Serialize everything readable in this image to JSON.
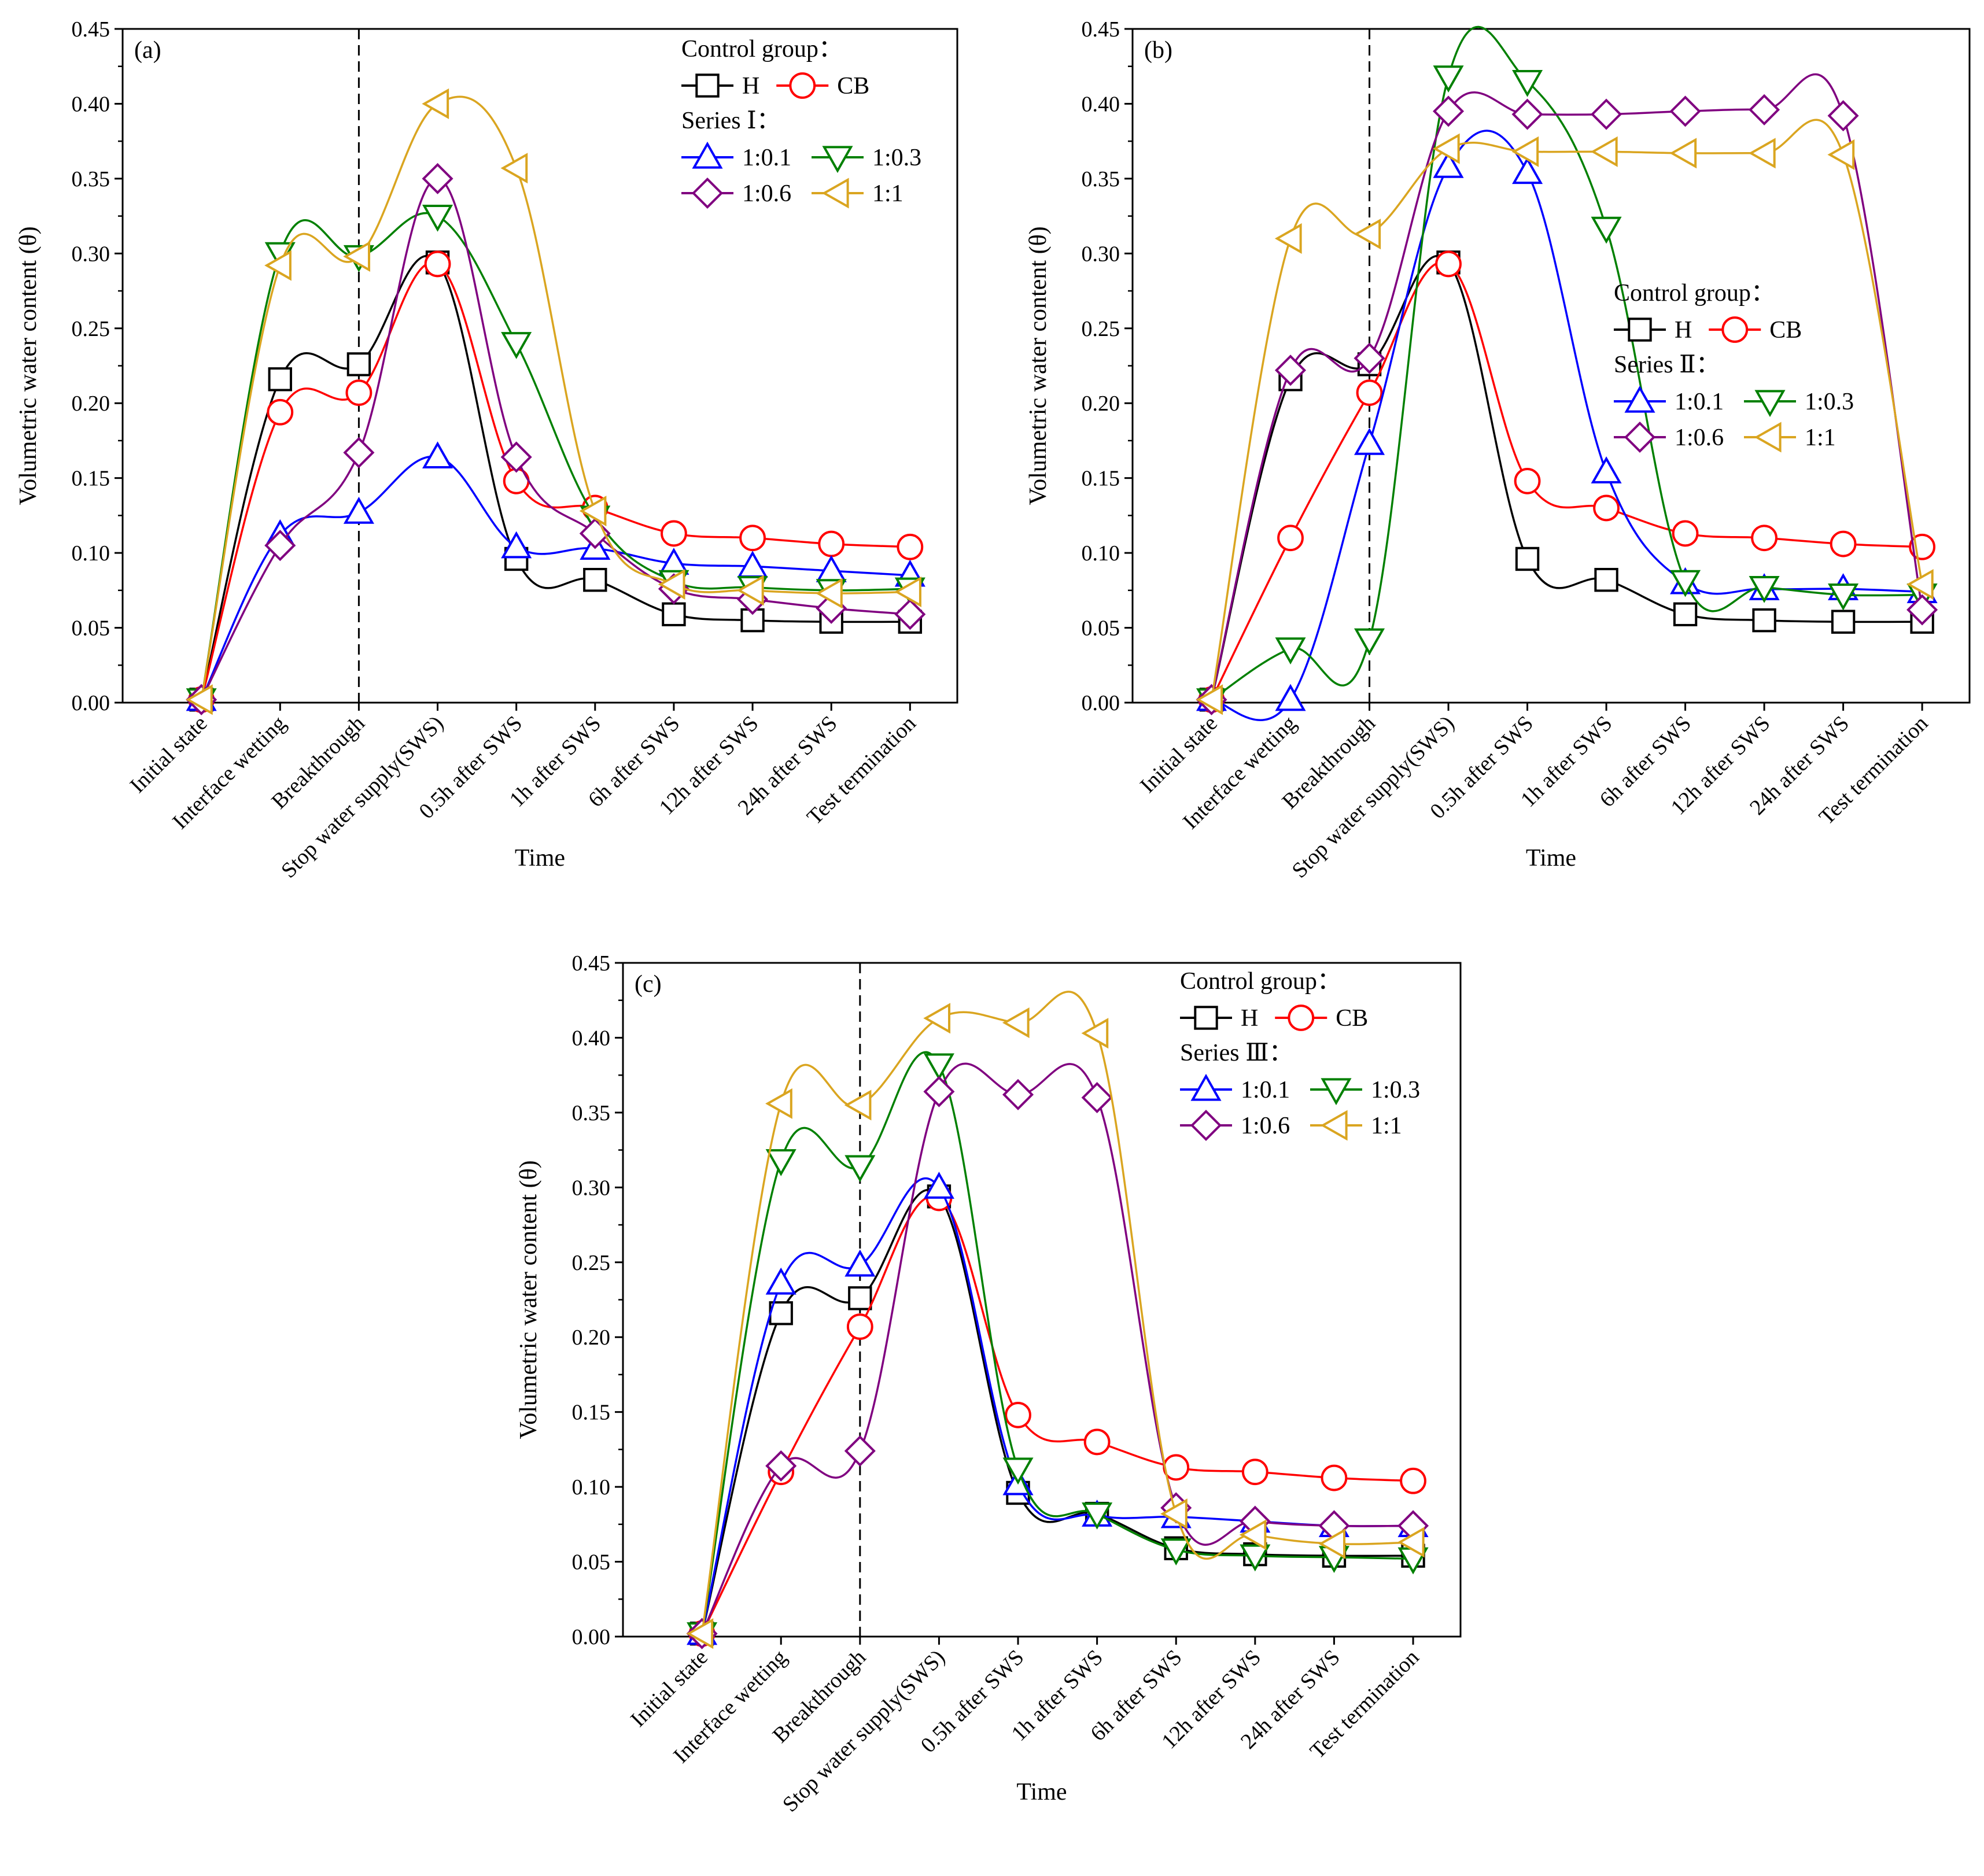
{
  "chart_data": [
    {
      "type": "line",
      "panel_label": "(a)",
      "xlabel": "Time",
      "ylabel": "Volumetric water content (θ)",
      "ylim": [
        0,
        0.45
      ],
      "yticks": [
        "0.00",
        "0.05",
        "0.10",
        "0.15",
        "0.20",
        "0.25",
        "0.30",
        "0.35",
        "0.40",
        "0.45"
      ],
      "categories": [
        "Initial state",
        "Interface wetting",
        "Breakthrough",
        "Stop water supply(SWS)",
        "0.5h after SWS",
        "1h after SWS",
        "6h after SWS",
        "12h after SWS",
        "24h after SWS",
        "Test termination"
      ],
      "legend": {
        "control_title": "Control group：",
        "series_title": "Series Ⅰ：",
        "placement": "top-right"
      },
      "series": [
        {
          "name": "H",
          "color": "#000000",
          "marker": "square",
          "values": [
            0.002,
            0.216,
            0.226,
            0.294,
            0.096,
            0.082,
            0.059,
            0.055,
            0.054,
            0.054
          ]
        },
        {
          "name": "CB",
          "color": "#ff0000",
          "marker": "circle",
          "values": [
            0.002,
            0.194,
            0.207,
            0.293,
            0.148,
            0.13,
            0.113,
            0.11,
            0.106,
            0.104
          ]
        },
        {
          "name": "1:0.1",
          "color": "#0000ff",
          "marker": "triangle-up",
          "values": [
            0.002,
            0.112,
            0.127,
            0.164,
            0.104,
            0.103,
            0.093,
            0.091,
            0.088,
            0.085
          ]
        },
        {
          "name": "1:0.3",
          "color": "#008000",
          "marker": "triangle-down",
          "values": [
            0.002,
            0.3,
            0.298,
            0.325,
            0.24,
            0.124,
            0.081,
            0.077,
            0.075,
            0.076
          ]
        },
        {
          "name": "1:0.6",
          "color": "#800080",
          "marker": "diamond",
          "values": [
            0.002,
            0.105,
            0.167,
            0.35,
            0.164,
            0.113,
            0.076,
            0.069,
            0.063,
            0.059
          ]
        },
        {
          "name": "1:1",
          "color": "#daa520",
          "marker": "triangle-left",
          "values": [
            0.002,
            0.292,
            0.298,
            0.4,
            0.357,
            0.128,
            0.079,
            0.075,
            0.073,
            0.074
          ]
        }
      ],
      "vline_at_category": "Breakthrough"
    },
    {
      "type": "line",
      "panel_label": "(b)",
      "xlabel": "Time",
      "ylabel": "Volumetric water content (θ)",
      "ylim": [
        0,
        0.45
      ],
      "yticks": [
        "0.00",
        "0.05",
        "0.10",
        "0.15",
        "0.20",
        "0.25",
        "0.30",
        "0.35",
        "0.40",
        "0.45"
      ],
      "categories": [
        "Initial state",
        "Interface wetting",
        "Breakthrough",
        "Stop water supply(SWS)",
        "0.5h after SWS",
        "1h after SWS",
        "6h after SWS",
        "12h after SWS",
        "24h after SWS",
        "Test termination"
      ],
      "legend": {
        "control_title": "Control group：",
        "series_title": "Series Ⅱ：",
        "placement": "center-right"
      },
      "series": [
        {
          "name": "H",
          "color": "#000000",
          "marker": "square",
          "values": [
            0.002,
            0.216,
            0.226,
            0.294,
            0.096,
            0.082,
            0.059,
            0.055,
            0.054,
            0.054
          ]
        },
        {
          "name": "CB",
          "color": "#ff0000",
          "marker": "circle",
          "values": [
            0.002,
            0.11,
            0.207,
            0.293,
            0.148,
            0.13,
            0.113,
            0.11,
            0.106,
            0.104
          ]
        },
        {
          "name": "1:0.1",
          "color": "#0000ff",
          "marker": "triangle-up",
          "values": [
            0.002,
            0.002,
            0.173,
            0.358,
            0.354,
            0.154,
            0.08,
            0.076,
            0.076,
            0.074
          ]
        },
        {
          "name": "1:0.3",
          "color": "#008000",
          "marker": "triangle-down",
          "values": [
            0.002,
            0.036,
            0.042,
            0.418,
            0.415,
            0.317,
            0.081,
            0.077,
            0.072,
            0.072
          ]
        },
        {
          "name": "1:0.6",
          "color": "#800080",
          "marker": "diamond",
          "values": [
            0.002,
            0.222,
            0.23,
            0.395,
            0.393,
            0.393,
            0.395,
            0.396,
            0.392,
            0.062
          ]
        },
        {
          "name": "1:1",
          "color": "#daa520",
          "marker": "triangle-left",
          "values": [
            0.002,
            0.31,
            0.313,
            0.37,
            0.368,
            0.368,
            0.367,
            0.367,
            0.366,
            0.079
          ]
        }
      ],
      "vline_at_category": "Breakthrough"
    },
    {
      "type": "line",
      "panel_label": "(c)",
      "xlabel": "Time",
      "ylabel": "Volumetric water content (θ)",
      "ylim": [
        0,
        0.45
      ],
      "yticks": [
        "0.00",
        "0.05",
        "0.10",
        "0.15",
        "0.20",
        "0.25",
        "0.30",
        "0.35",
        "0.40",
        "0.45"
      ],
      "categories": [
        "Initial state",
        "Interface wetting",
        "Breakthrough",
        "Stop water supply(SWS)",
        "0.5h after SWS",
        "1h after SWS",
        "6h after SWS",
        "12h after SWS",
        "24h after SWS",
        "Test termination"
      ],
      "legend": {
        "control_title": "Control group：",
        "series_title": "Series Ⅲ：",
        "placement": "top-right"
      },
      "series": [
        {
          "name": "H",
          "color": "#000000",
          "marker": "square",
          "values": [
            0.002,
            0.216,
            0.226,
            0.294,
            0.096,
            0.082,
            0.059,
            0.055,
            0.054,
            0.054
          ]
        },
        {
          "name": "CB",
          "color": "#ff0000",
          "marker": "circle",
          "values": [
            0.002,
            0.11,
            0.207,
            0.293,
            0.148,
            0.13,
            0.113,
            0.11,
            0.106,
            0.104
          ]
        },
        {
          "name": "1:0.1",
          "color": "#0000ff",
          "marker": "triangle-up",
          "values": [
            0.002,
            0.236,
            0.248,
            0.3,
            0.102,
            0.081,
            0.08,
            0.077,
            0.074,
            0.074
          ]
        },
        {
          "name": "1:0.3",
          "color": "#008000",
          "marker": "triangle-down",
          "values": [
            0.002,
            0.318,
            0.314,
            0.382,
            0.112,
            0.082,
            0.058,
            0.054,
            0.053,
            0.052
          ]
        },
        {
          "name": "1:0.6",
          "color": "#800080",
          "marker": "diamond",
          "values": [
            0.002,
            0.114,
            0.124,
            0.364,
            0.362,
            0.36,
            0.086,
            0.077,
            0.074,
            0.074
          ]
        },
        {
          "name": "1:1",
          "color": "#daa520",
          "marker": "triangle-left",
          "values": [
            0.002,
            0.356,
            0.355,
            0.413,
            0.41,
            0.403,
            0.082,
            0.068,
            0.062,
            0.063
          ]
        }
      ],
      "vline_at_category": "Breakthrough"
    }
  ]
}
